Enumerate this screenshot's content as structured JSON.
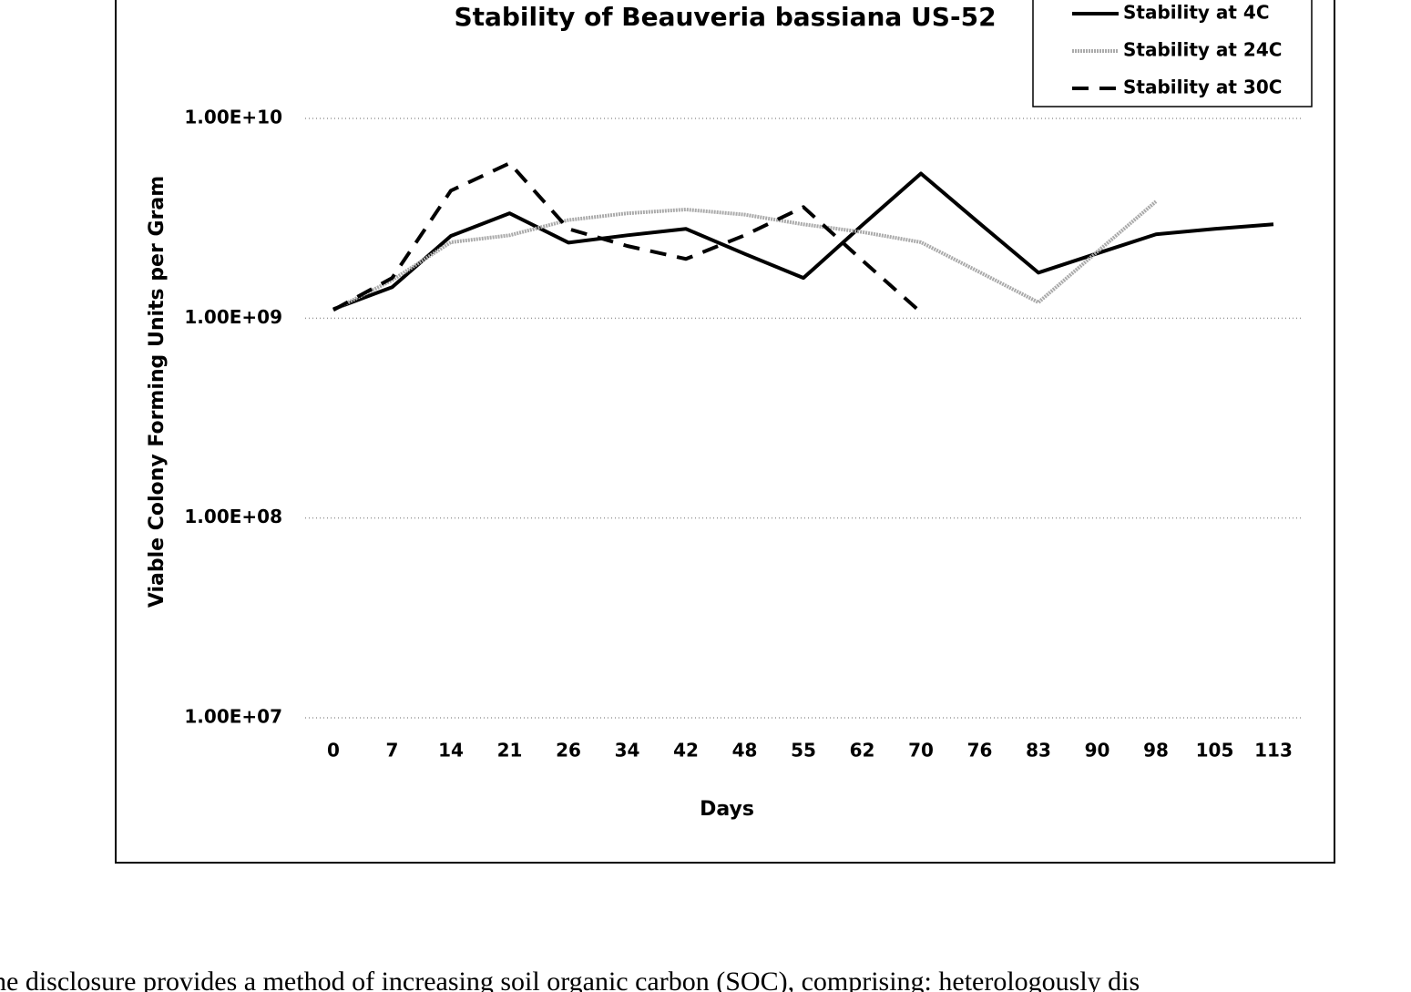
{
  "chart_data": {
    "type": "line",
    "title": "Stability of Beauveria bassiana US-52",
    "x_label": "Days",
    "y_label": "Viable Colony Forming Units per Gram",
    "categories": [
      "0",
      "7",
      "14",
      "21",
      "26",
      "34",
      "42",
      "48",
      "55",
      "62",
      "70",
      "76",
      "83",
      "90",
      "98",
      "105",
      "113"
    ],
    "log_scale_y": true,
    "grid": true,
    "legend_position": "top-right",
    "ylim": [
      10000000,
      10000000000
    ],
    "yticks": [
      {
        "value": 10000000,
        "label": "1.00E+07"
      },
      {
        "value": 100000000,
        "label": "1.00E+08"
      },
      {
        "value": 1000000000,
        "label": "1.00E+09"
      },
      {
        "value": 10000000000,
        "label": "1.00E+10"
      }
    ],
    "series": [
      {
        "name": "Stability at 4C",
        "color": "#000000",
        "dash": "solid",
        "values": [
          1110000000,
          1430000000,
          2580000000,
          3350000000,
          2390000000,
          2600000000,
          2800000000,
          2100000000,
          1590000000,
          2920000000,
          5300000000,
          2980000000,
          1690000000,
          2110000000,
          2630000000,
          2800000000,
          2950000000
        ]
      },
      {
        "name": "Stability at 24C",
        "color": "#aaaaaa",
        "dash": "dotted",
        "values": [
          1100000000,
          1550000000,
          2400000000,
          2600000000,
          3100000000,
          3350000000,
          3500000000,
          3300000000,
          2950000000,
          2700000000,
          2400000000,
          1700000000,
          1200000000,
          2150000000,
          3840000000,
          null,
          null
        ]
      },
      {
        "name": "Stability at 30C",
        "color": "#000000",
        "dash": "dashed",
        "values": [
          1100000000,
          1590000000,
          4350000000,
          5970000000,
          2800000000,
          2300000000,
          1980000000,
          2600000000,
          3600000000,
          1950000000,
          1070000000,
          null,
          null,
          null,
          null,
          null,
          null
        ]
      }
    ]
  },
  "body_text": "he disclosure provides a method of increasing soil organic carbon (SOC), comprising: heterologously dis"
}
